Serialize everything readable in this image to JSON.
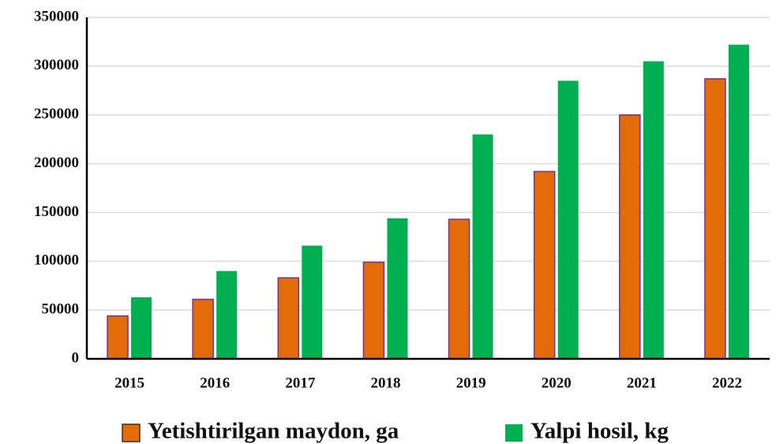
{
  "chart_data": {
    "type": "bar",
    "categories": [
      "2015",
      "2016",
      "2017",
      "2018",
      "2019",
      "2020",
      "2021",
      "2022"
    ],
    "series": [
      {
        "name": "Yetishtirilgan maydon, ga",
        "color": "#e36c09",
        "values": [
          44000,
          61000,
          83000,
          99000,
          143000,
          192000,
          250000,
          287000
        ]
      },
      {
        "name": "Yalpi hosil, kg",
        "color": "#00b050",
        "values": [
          63000,
          90000,
          116000,
          144000,
          230000,
          285000,
          305000,
          322000
        ]
      }
    ],
    "ylim": [
      0,
      350000
    ],
    "yticks": [
      0,
      50000,
      100000,
      150000,
      200000,
      250000,
      300000,
      350000
    ],
    "grid": true,
    "legend": "bottom"
  }
}
